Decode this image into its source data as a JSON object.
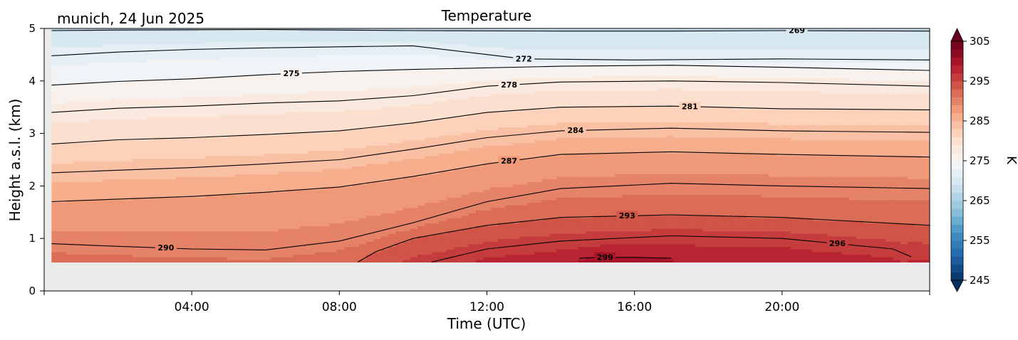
{
  "header": {
    "site_date": "munich, 24 Jun 2025",
    "title": "Temperature"
  },
  "chart_data": {
    "type": "heatmap",
    "title": "Temperature",
    "xlabel": "Time (UTC)",
    "ylabel": "Height a.s.l. (km)",
    "xlim_hours": [
      0,
      24
    ],
    "ylim": [
      0,
      5
    ],
    "x_ticks": [
      {
        "hour": 4,
        "label": "04:00"
      },
      {
        "hour": 8,
        "label": "08:00"
      },
      {
        "hour": 12,
        "label": "12:00"
      },
      {
        "hour": 16,
        "label": "16:00"
      },
      {
        "hour": 20,
        "label": "20:00"
      }
    ],
    "y_ticks": [
      0,
      1,
      2,
      3,
      4,
      5
    ],
    "data_start_height_km": 0.55,
    "no_data_color": "#ebebeb",
    "colormap": "RdBu_r",
    "colorbar": {
      "label": "K",
      "min": 245,
      "max": 305,
      "ticks": [
        245,
        255,
        265,
        275,
        285,
        295,
        305
      ],
      "extend": "both"
    },
    "contour_lines": [
      {
        "level": 269,
        "label_hour": 20.4,
        "points": [
          [
            0.2,
            4.96
          ],
          [
            2,
            4.97
          ],
          [
            6,
            4.98
          ],
          [
            10,
            4.96
          ],
          [
            14,
            4.95
          ],
          [
            17,
            4.95
          ],
          [
            20,
            4.96
          ],
          [
            24,
            4.95
          ]
        ]
      },
      {
        "level": 272,
        "label_hour": 13.0,
        "points": [
          [
            0.2,
            4.48
          ],
          [
            2,
            4.55
          ],
          [
            4,
            4.6
          ],
          [
            6,
            4.63
          ],
          [
            8,
            4.65
          ],
          [
            10,
            4.67
          ],
          [
            13,
            4.42
          ],
          [
            16,
            4.4
          ],
          [
            20,
            4.42
          ],
          [
            24,
            4.4
          ]
        ]
      },
      {
        "level": 275,
        "label_hour": 6.7,
        "points": [
          [
            0.2,
            3.92
          ],
          [
            2,
            3.99
          ],
          [
            4,
            4.04
          ],
          [
            6,
            4.12
          ],
          [
            8,
            4.18
          ],
          [
            10,
            4.22
          ],
          [
            14,
            4.28
          ],
          [
            17,
            4.3
          ],
          [
            20,
            4.26
          ],
          [
            24,
            4.2
          ]
        ]
      },
      {
        "level": 278,
        "label_hour": 12.6,
        "points": [
          [
            0.2,
            3.4
          ],
          [
            2,
            3.48
          ],
          [
            4,
            3.52
          ],
          [
            6,
            3.58
          ],
          [
            8,
            3.62
          ],
          [
            10,
            3.72
          ],
          [
            12,
            3.9
          ],
          [
            14,
            3.98
          ],
          [
            17,
            4.0
          ],
          [
            20,
            3.97
          ],
          [
            24,
            3.9
          ]
        ]
      },
      {
        "level": 281,
        "label_hour": 17.5,
        "points": [
          [
            0.2,
            2.8
          ],
          [
            2,
            2.88
          ],
          [
            4,
            2.92
          ],
          [
            6,
            2.98
          ],
          [
            8,
            3.05
          ],
          [
            10,
            3.2
          ],
          [
            12,
            3.4
          ],
          [
            14,
            3.5
          ],
          [
            17,
            3.52
          ],
          [
            20,
            3.47
          ],
          [
            24,
            3.45
          ]
        ]
      },
      {
        "level": 284,
        "label_hour": 14.4,
        "points": [
          [
            0.2,
            2.25
          ],
          [
            2,
            2.3
          ],
          [
            4,
            2.35
          ],
          [
            6,
            2.42
          ],
          [
            8,
            2.5
          ],
          [
            10,
            2.7
          ],
          [
            12,
            2.92
          ],
          [
            14,
            3.05
          ],
          [
            17,
            3.1
          ],
          [
            20,
            3.05
          ],
          [
            24,
            3.02
          ]
        ]
      },
      {
        "level": 287,
        "label_hour": 12.6,
        "points": [
          [
            0.2,
            1.7
          ],
          [
            2,
            1.75
          ],
          [
            4,
            1.8
          ],
          [
            6,
            1.88
          ],
          [
            8,
            1.98
          ],
          [
            10,
            2.18
          ],
          [
            12,
            2.42
          ],
          [
            14,
            2.6
          ],
          [
            17,
            2.65
          ],
          [
            20,
            2.6
          ],
          [
            24,
            2.55
          ]
        ]
      },
      {
        "level": 290,
        "label_hour": 3.3,
        "points": [
          [
            0.2,
            0.9
          ],
          [
            2,
            0.85
          ],
          [
            4,
            0.8
          ],
          [
            6,
            0.78
          ],
          [
            8,
            0.95
          ],
          [
            10,
            1.3
          ],
          [
            12,
            1.7
          ],
          [
            14,
            1.95
          ],
          [
            17,
            2.05
          ],
          [
            20,
            2.0
          ],
          [
            24,
            1.95
          ]
        ]
      },
      {
        "level": 293,
        "label_hour": 15.8,
        "points": [
          [
            8.5,
            0.55
          ],
          [
            9,
            0.75
          ],
          [
            10,
            1.0
          ],
          [
            12,
            1.25
          ],
          [
            14,
            1.4
          ],
          [
            17,
            1.45
          ],
          [
            20,
            1.4
          ],
          [
            24,
            1.25
          ]
        ]
      },
      {
        "level": 296,
        "label_hour": 21.5,
        "points": [
          [
            10.5,
            0.55
          ],
          [
            12,
            0.8
          ],
          [
            14,
            0.95
          ],
          [
            17,
            1.05
          ],
          [
            20,
            1.0
          ],
          [
            23,
            0.8
          ],
          [
            23.5,
            0.65
          ]
        ]
      },
      {
        "level": 299,
        "label_hour": 15.2,
        "points": [
          [
            14.5,
            0.62
          ],
          [
            15,
            0.64
          ],
          [
            16,
            0.64
          ],
          [
            17,
            0.62
          ]
        ]
      }
    ]
  }
}
